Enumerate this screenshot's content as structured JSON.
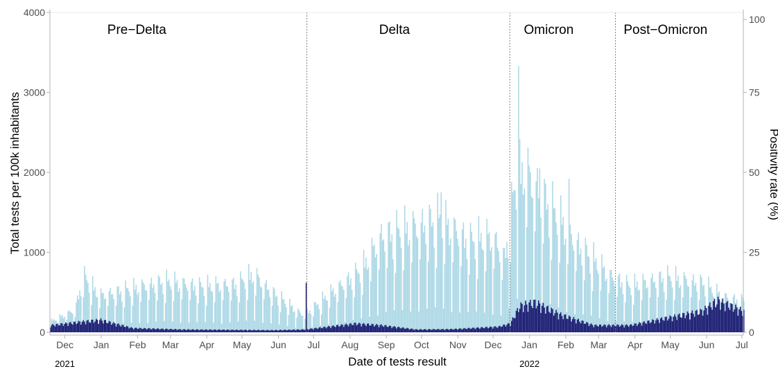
{
  "chart_data": {
    "type": "bar",
    "xlabel": "Date of tests result",
    "ylabel_left": "Total tests per 100k inhabitants",
    "ylabel_right": "Positivity rate (%)",
    "ylim_left": [
      0,
      4000
    ],
    "ylim_right": [
      0,
      100
    ],
    "yticks_left": [
      "0",
      "1000",
      "2000",
      "3000",
      "4000"
    ],
    "yticks_right": [
      "0",
      "25",
      "50",
      "75",
      "100"
    ],
    "x_range": [
      "2020-11-23",
      "2022-07-07"
    ],
    "month_ticks": [
      {
        "date": "2020-12-01",
        "label": "Dec"
      },
      {
        "date": "2021-01-01",
        "label": "Jan"
      },
      {
        "date": "2021-02-01",
        "label": "Feb"
      },
      {
        "date": "2021-03-01",
        "label": "Mar"
      },
      {
        "date": "2021-04-01",
        "label": "Apr"
      },
      {
        "date": "2021-05-01",
        "label": "May"
      },
      {
        "date": "2021-06-01",
        "label": "Jun"
      },
      {
        "date": "2021-07-01",
        "label": "Jul"
      },
      {
        "date": "2021-08-01",
        "label": "Aug"
      },
      {
        "date": "2021-09-01",
        "label": "Sep"
      },
      {
        "date": "2021-10-01",
        "label": "Oct"
      },
      {
        "date": "2021-11-01",
        "label": "Nov"
      },
      {
        "date": "2021-12-01",
        "label": "Dec"
      },
      {
        "date": "2022-01-01",
        "label": "Jan"
      },
      {
        "date": "2022-02-01",
        "label": "Feb"
      },
      {
        "date": "2022-03-01",
        "label": "Mar"
      },
      {
        "date": "2022-04-01",
        "label": "Apr"
      },
      {
        "date": "2022-05-01",
        "label": "May"
      },
      {
        "date": "2022-06-01",
        "label": "Jun"
      },
      {
        "date": "2022-07-01",
        "label": "Jul"
      }
    ],
    "year_labels": [
      {
        "date": "2020-12-01",
        "label": "2021"
      },
      {
        "date": "2022-01-01",
        "label": "2022"
      }
    ],
    "periods": [
      {
        "name": "Pre−Delta",
        "start": "2020-11-23",
        "end": "2021-06-30"
      },
      {
        "name": "Delta",
        "start": "2021-06-30",
        "end": "2021-12-20"
      },
      {
        "name": "Omicron",
        "start": "2021-12-20",
        "end": "2022-03-20"
      },
      {
        "name": "Post−Omicron",
        "start": "2022-03-20",
        "end": "2022-07-07"
      }
    ],
    "series": [
      {
        "name": "Total tests per 100k inhabitants",
        "color": "#add8e6",
        "axis": "left",
        "anchors": [
          {
            "date": "2020-11-23",
            "value": 150
          },
          {
            "date": "2020-12-14",
            "value": 320
          },
          {
            "date": "2020-12-21",
            "value": 800
          },
          {
            "date": "2021-01-04",
            "value": 520
          },
          {
            "date": "2021-02-01",
            "value": 620
          },
          {
            "date": "2021-03-01",
            "value": 720
          },
          {
            "date": "2021-04-01",
            "value": 650
          },
          {
            "date": "2021-05-01",
            "value": 680
          },
          {
            "date": "2021-05-15",
            "value": 820
          },
          {
            "date": "2021-06-01",
            "value": 560
          },
          {
            "date": "2021-06-25",
            "value": 260
          },
          {
            "date": "2021-07-01",
            "value": 300
          },
          {
            "date": "2021-07-20",
            "value": 560
          },
          {
            "date": "2021-08-15",
            "value": 880
          },
          {
            "date": "2021-09-01",
            "value": 1350
          },
          {
            "date": "2021-10-01",
            "value": 1500
          },
          {
            "date": "2021-10-20",
            "value": 1600
          },
          {
            "date": "2021-11-15",
            "value": 1300
          },
          {
            "date": "2021-12-05",
            "value": 1350
          },
          {
            "date": "2021-12-15",
            "value": 1050
          },
          {
            "date": "2021-12-24",
            "value": 2100
          },
          {
            "date": "2022-01-01",
            "value": 2300
          },
          {
            "date": "2022-01-20",
            "value": 1850
          },
          {
            "date": "2022-02-15",
            "value": 1250
          },
          {
            "date": "2022-03-15",
            "value": 800
          },
          {
            "date": "2022-04-01",
            "value": 650
          },
          {
            "date": "2022-05-01",
            "value": 780
          },
          {
            "date": "2022-06-01",
            "value": 700
          },
          {
            "date": "2022-06-20",
            "value": 500
          },
          {
            "date": "2022-07-07",
            "value": 450
          }
        ]
      },
      {
        "name": "Positivity rate (%)",
        "color": "#191970",
        "axis": "right",
        "anchors": [
          {
            "date": "2020-11-23",
            "value": 2
          },
          {
            "date": "2020-12-20",
            "value": 3
          },
          {
            "date": "2021-01-05",
            "value": 3.5
          },
          {
            "date": "2021-02-01",
            "value": 1.2
          },
          {
            "date": "2021-03-15",
            "value": 0.8
          },
          {
            "date": "2021-06-01",
            "value": 0.6
          },
          {
            "date": "2021-06-28",
            "value": 0.8
          },
          {
            "date": "2021-08-10",
            "value": 2.5
          },
          {
            "date": "2021-09-01",
            "value": 2
          },
          {
            "date": "2021-10-01",
            "value": 0.8
          },
          {
            "date": "2021-11-01",
            "value": 0.9
          },
          {
            "date": "2021-12-10",
            "value": 1.6
          },
          {
            "date": "2021-12-20",
            "value": 2.5
          },
          {
            "date": "2021-12-28",
            "value": 7.5
          },
          {
            "date": "2022-01-10",
            "value": 8.5
          },
          {
            "date": "2022-02-01",
            "value": 5
          },
          {
            "date": "2022-03-01",
            "value": 2
          },
          {
            "date": "2022-04-01",
            "value": 2
          },
          {
            "date": "2022-05-01",
            "value": 4
          },
          {
            "date": "2022-06-01",
            "value": 6
          },
          {
            "date": "2022-06-15",
            "value": 9
          },
          {
            "date": "2022-07-07",
            "value": 6
          }
        ]
      }
    ],
    "spikes": [
      {
        "date": "2021-06-29",
        "series": "Positivity rate (%)",
        "value": 15.5
      },
      {
        "date": "2021-12-27",
        "series": "Total tests per 100k inhabitants",
        "value": 3330
      },
      {
        "date": "2022-01-14",
        "series": "Total tests per 100k inhabitants",
        "value": 2050
      },
      {
        "date": "2022-02-08",
        "series": "Total tests per 100k inhabitants",
        "value": 1920
      },
      {
        "date": "2021-10-22",
        "series": "Total tests per 100k inhabitants",
        "value": 1750
      },
      {
        "date": "2022-06-12",
        "series": "Positivity rate (%)",
        "value": 10.5
      }
    ]
  },
  "colors": {
    "tests": "#add8e6",
    "positivity": "#191970",
    "axis": "#b3b3b3",
    "divider": "#7f7f7f"
  }
}
